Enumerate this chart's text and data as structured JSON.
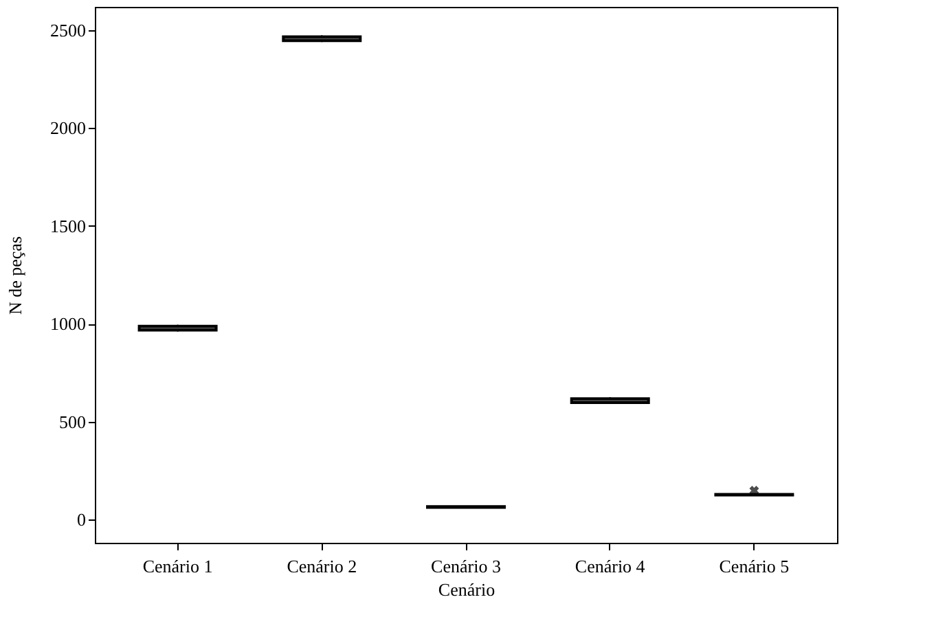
{
  "chart_data": {
    "type": "box",
    "xlabel": "Cenário",
    "ylabel": "N de peças",
    "categories": [
      "Cenário 1",
      "Cenário 2",
      "Cenário 3",
      "Cenário 4",
      "Cenário 5"
    ],
    "boxes": [
      {
        "low": 960,
        "q1": 967,
        "median": 977,
        "q3": 987,
        "high": 995
      },
      {
        "low": 2440,
        "q1": 2447,
        "median": 2457,
        "q3": 2467,
        "high": 2475
      },
      {
        "low": 57,
        "q1": 61,
        "median": 63,
        "q3": 65,
        "high": 68
      },
      {
        "low": 590,
        "q1": 597,
        "median": 607,
        "q3": 617,
        "high": 625
      },
      {
        "low": 122,
        "q1": 124,
        "median": 126,
        "q3": 128,
        "high": 130,
        "outliers": [
          147
        ]
      }
    ],
    "ylim": [
      -120,
      2620
    ],
    "yticks": [
      0,
      500,
      1000,
      1500,
      2000,
      2500
    ],
    "grid": false
  }
}
